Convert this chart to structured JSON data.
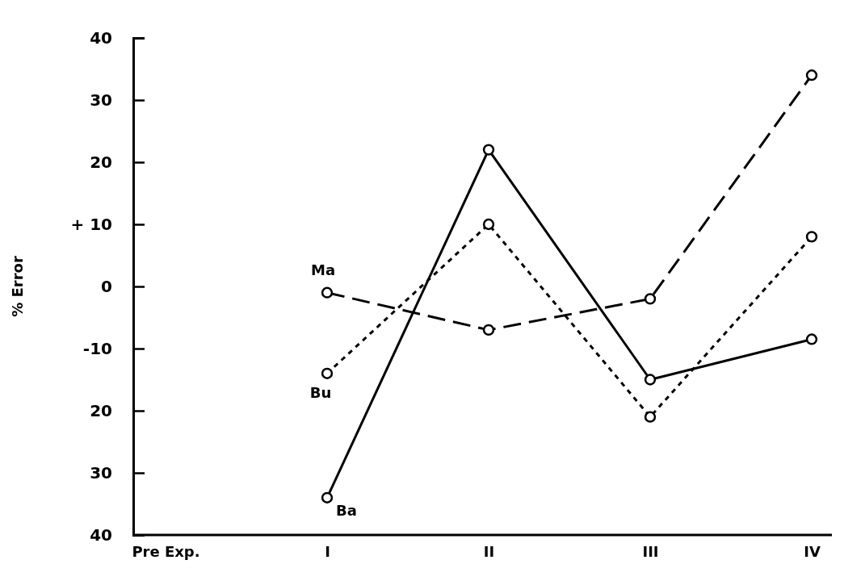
{
  "chart_data": {
    "type": "line",
    "ylabel": "% Error",
    "categories": [
      "Pre Exp.",
      "I",
      "II",
      "III",
      "IV"
    ],
    "series": [
      {
        "name": "Ma",
        "color": "#000000",
        "line_style": "dashed",
        "values": [
          null,
          -1,
          -7,
          -2,
          34
        ]
      },
      {
        "name": "Bu",
        "color": "#000000",
        "line_style": "dotted",
        "values": [
          null,
          -14,
          10,
          -21,
          8
        ]
      },
      {
        "name": "Ba",
        "color": "#000000",
        "line_style": "solid",
        "values": [
          null,
          -34,
          22,
          -15,
          -8.5
        ]
      }
    ],
    "ylim": [
      -40,
      40
    ],
    "yticks": [
      {
        "value": -40,
        "label": "40"
      },
      {
        "value": -30,
        "label": "30"
      },
      {
        "value": -20,
        "label": "20"
      },
      {
        "value": -10,
        "label": "-10"
      },
      0,
      {
        "value": 10,
        "label": "+ 10"
      },
      20,
      30,
      40
    ],
    "marker": "circle",
    "grid": false,
    "legend": false
  }
}
